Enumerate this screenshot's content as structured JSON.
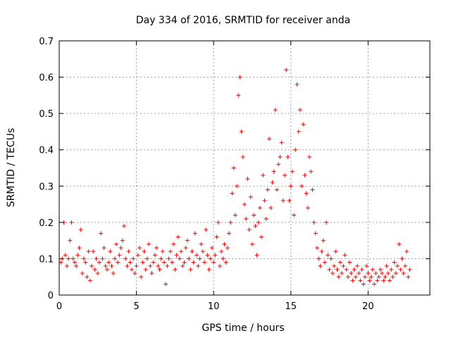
{
  "chart_data": {
    "type": "scatter",
    "title": "Day 334 of 2016, SRMTID for receiver anda",
    "xlabel": "GPS time / hours",
    "ylabel": "SRMTID / TECUs",
    "xlim": [
      0,
      24
    ],
    "ylim": [
      0,
      0.7
    ],
    "x_ticks": [
      0,
      5,
      10,
      15,
      20
    ],
    "x_tick_labels": [
      "0",
      "5",
      "10",
      "15",
      "20"
    ],
    "y_ticks": [
      0,
      0.1,
      0.2,
      0.3,
      0.4,
      0.5,
      0.6,
      0.7
    ],
    "y_tick_labels": [
      "0",
      "0.1",
      "0.2",
      "0.3",
      "0.4",
      "0.5",
      "0.6",
      "0.7"
    ],
    "grid": true,
    "marker": "+",
    "colors": {
      "series": "#ff0000",
      "grid": "#a0a0a0",
      "axis": "#000000"
    },
    "series": [
      {
        "name": "SRMTID",
        "points": [
          [
            0.1,
            0.09
          ],
          [
            0.2,
            0.1
          ],
          [
            0.3,
            0.2
          ],
          [
            0.4,
            0.11
          ],
          [
            0.5,
            0.08
          ],
          [
            0.6,
            0.1
          ],
          [
            0.7,
            0.15
          ],
          [
            0.8,
            0.2
          ],
          [
            0.9,
            0.1
          ],
          [
            1.0,
            0.09
          ],
          [
            1.1,
            0.08
          ],
          [
            1.2,
            0.11
          ],
          [
            1.3,
            0.13
          ],
          [
            1.4,
            0.18
          ],
          [
            1.5,
            0.06
          ],
          [
            1.6,
            0.1
          ],
          [
            1.7,
            0.09
          ],
          [
            1.8,
            0.05
          ],
          [
            1.9,
            0.12
          ],
          [
            2.0,
            0.04
          ],
          [
            2.1,
            0.08
          ],
          [
            2.2,
            0.12
          ],
          [
            2.3,
            0.07
          ],
          [
            2.4,
            0.1
          ],
          [
            2.5,
            0.06
          ],
          [
            2.6,
            0.09
          ],
          [
            2.7,
            0.17
          ],
          [
            2.8,
            0.1
          ],
          [
            2.9,
            0.13
          ],
          [
            3.0,
            0.08
          ],
          [
            3.1,
            0.07
          ],
          [
            3.2,
            0.09
          ],
          [
            3.3,
            0.12
          ],
          [
            3.4,
            0.08
          ],
          [
            3.5,
            0.06
          ],
          [
            3.6,
            0.1
          ],
          [
            3.7,
            0.14
          ],
          [
            3.8,
            0.09
          ],
          [
            3.9,
            0.11
          ],
          [
            4.0,
            0.13
          ],
          [
            4.1,
            0.15
          ],
          [
            4.2,
            0.19
          ],
          [
            4.3,
            0.1
          ],
          [
            4.4,
            0.08
          ],
          [
            4.5,
            0.12
          ],
          [
            4.6,
            0.09
          ],
          [
            4.7,
            0.07
          ],
          [
            4.8,
            0.1
          ],
          [
            4.9,
            0.06
          ],
          [
            5.0,
            0.08
          ],
          [
            5.1,
            0.11
          ],
          [
            5.2,
            0.13
          ],
          [
            5.3,
            0.05
          ],
          [
            5.4,
            0.09
          ],
          [
            5.5,
            0.12
          ],
          [
            5.6,
            0.07
          ],
          [
            5.7,
            0.1
          ],
          [
            5.8,
            0.14
          ],
          [
            5.9,
            0.08
          ],
          [
            6.0,
            0.06
          ],
          [
            6.1,
            0.09
          ],
          [
            6.2,
            0.11
          ],
          [
            6.3,
            0.13
          ],
          [
            6.4,
            0.08
          ],
          [
            6.5,
            0.07
          ],
          [
            6.6,
            0.1
          ],
          [
            6.7,
            0.12
          ],
          [
            6.8,
            0.09
          ],
          [
            6.9,
            0.03
          ],
          [
            7.0,
            0.08
          ],
          [
            7.1,
            0.1
          ],
          [
            7.2,
            0.12
          ],
          [
            7.3,
            0.09
          ],
          [
            7.4,
            0.14
          ],
          [
            7.5,
            0.07
          ],
          [
            7.6,
            0.11
          ],
          [
            7.7,
            0.16
          ],
          [
            7.8,
            0.1
          ],
          [
            7.9,
            0.12
          ],
          [
            8.0,
            0.08
          ],
          [
            8.1,
            0.09
          ],
          [
            8.2,
            0.13
          ],
          [
            8.3,
            0.15
          ],
          [
            8.4,
            0.1
          ],
          [
            8.5,
            0.07
          ],
          [
            8.6,
            0.12
          ],
          [
            8.7,
            0.09
          ],
          [
            8.8,
            0.17
          ],
          [
            8.9,
            0.11
          ],
          [
            9.0,
            0.08
          ],
          [
            9.1,
            0.1
          ],
          [
            9.2,
            0.14
          ],
          [
            9.3,
            0.12
          ],
          [
            9.4,
            0.09
          ],
          [
            9.5,
            0.18
          ],
          [
            9.6,
            0.11
          ],
          [
            9.7,
            0.07
          ],
          [
            9.8,
            0.1
          ],
          [
            9.9,
            0.13
          ],
          [
            10.0,
            0.09
          ],
          [
            10.1,
            0.11
          ],
          [
            10.2,
            0.16
          ],
          [
            10.3,
            0.2
          ],
          [
            10.4,
            0.08
          ],
          [
            10.5,
            0.12
          ],
          [
            10.6,
            0.1
          ],
          [
            10.7,
            0.14
          ],
          [
            10.8,
            0.09
          ],
          [
            10.9,
            0.13
          ],
          [
            11.0,
            0.17
          ],
          [
            11.1,
            0.2
          ],
          [
            11.2,
            0.28
          ],
          [
            11.3,
            0.35
          ],
          [
            11.4,
            0.22
          ],
          [
            11.5,
            0.3
          ],
          [
            11.6,
            0.55
          ],
          [
            11.7,
            0.6
          ],
          [
            11.8,
            0.45
          ],
          [
            11.9,
            0.38
          ],
          [
            12.0,
            0.25
          ],
          [
            12.1,
            0.21
          ],
          [
            12.2,
            0.32
          ],
          [
            12.3,
            0.18
          ],
          [
            12.4,
            0.27
          ],
          [
            12.5,
            0.14
          ],
          [
            12.6,
            0.22
          ],
          [
            12.7,
            0.19
          ],
          [
            12.8,
            0.11
          ],
          [
            12.9,
            0.2
          ],
          [
            13.0,
            0.24
          ],
          [
            13.1,
            0.16
          ],
          [
            13.2,
            0.33
          ],
          [
            13.3,
            0.26
          ],
          [
            13.4,
            0.21
          ],
          [
            13.5,
            0.29
          ],
          [
            13.6,
            0.43
          ],
          [
            13.7,
            0.24
          ],
          [
            13.8,
            0.31
          ],
          [
            13.9,
            0.34
          ],
          [
            14.0,
            0.51
          ],
          [
            14.1,
            0.29
          ],
          [
            14.2,
            0.36
          ],
          [
            14.3,
            0.38
          ],
          [
            14.4,
            0.42
          ],
          [
            14.5,
            0.26
          ],
          [
            14.6,
            0.33
          ],
          [
            14.7,
            0.62
          ],
          [
            14.8,
            0.38
          ],
          [
            14.9,
            0.26
          ],
          [
            15.0,
            0.3
          ],
          [
            15.1,
            0.34
          ],
          [
            15.2,
            0.22
          ],
          [
            15.3,
            0.4
          ],
          [
            15.4,
            0.58
          ],
          [
            15.5,
            0.45
          ],
          [
            15.6,
            0.51
          ],
          [
            15.7,
            0.3
          ],
          [
            15.8,
            0.47
          ],
          [
            15.9,
            0.33
          ],
          [
            16.0,
            0.28
          ],
          [
            16.1,
            0.24
          ],
          [
            16.2,
            0.38
          ],
          [
            16.3,
            0.34
          ],
          [
            16.4,
            0.29
          ],
          [
            16.5,
            0.2
          ],
          [
            16.6,
            0.17
          ],
          [
            16.7,
            0.13
          ],
          [
            16.8,
            0.1
          ],
          [
            16.9,
            0.08
          ],
          [
            17.0,
            0.12
          ],
          [
            17.1,
            0.15
          ],
          [
            17.2,
            0.09
          ],
          [
            17.3,
            0.2
          ],
          [
            17.4,
            0.11
          ],
          [
            17.5,
            0.07
          ],
          [
            17.6,
            0.1
          ],
          [
            17.7,
            0.06
          ],
          [
            17.8,
            0.08
          ],
          [
            17.9,
            0.12
          ],
          [
            18.0,
            0.07
          ],
          [
            18.1,
            0.05
          ],
          [
            18.2,
            0.09
          ],
          [
            18.3,
            0.06
          ],
          [
            18.4,
            0.08
          ],
          [
            18.5,
            0.11
          ],
          [
            18.6,
            0.07
          ],
          [
            18.7,
            0.05
          ],
          [
            18.8,
            0.09
          ],
          [
            18.9,
            0.06
          ],
          [
            19.0,
            0.04
          ],
          [
            19.1,
            0.07
          ],
          [
            19.2,
            0.05
          ],
          [
            19.3,
            0.08
          ],
          [
            19.4,
            0.06
          ],
          [
            19.5,
            0.04
          ],
          [
            19.6,
            0.07
          ],
          [
            19.7,
            0.03
          ],
          [
            19.8,
            0.05
          ],
          [
            19.9,
            0.08
          ],
          [
            20.0,
            0.06
          ],
          [
            20.1,
            0.04
          ],
          [
            20.2,
            0.05
          ],
          [
            20.3,
            0.07
          ],
          [
            20.4,
            0.03
          ],
          [
            20.5,
            0.06
          ],
          [
            20.6,
            0.04
          ],
          [
            20.7,
            0.05
          ],
          [
            20.8,
            0.07
          ],
          [
            20.9,
            0.06
          ],
          [
            21.0,
            0.04
          ],
          [
            21.1,
            0.05
          ],
          [
            21.2,
            0.08
          ],
          [
            21.3,
            0.06
          ],
          [
            21.4,
            0.04
          ],
          [
            21.5,
            0.07
          ],
          [
            21.6,
            0.05
          ],
          [
            21.7,
            0.09
          ],
          [
            21.8,
            0.06
          ],
          [
            21.9,
            0.08
          ],
          [
            22.0,
            0.14
          ],
          [
            22.1,
            0.07
          ],
          [
            22.2,
            0.1
          ],
          [
            22.3,
            0.06
          ],
          [
            22.4,
            0.08
          ],
          [
            22.5,
            0.12
          ],
          [
            22.6,
            0.05
          ],
          [
            22.7,
            0.07
          ]
        ]
      }
    ]
  }
}
